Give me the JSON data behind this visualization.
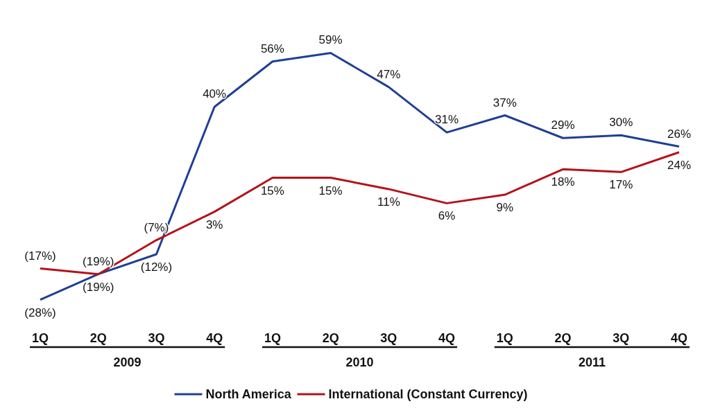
{
  "chart_data": {
    "type": "line",
    "categories": [
      "1Q",
      "2Q",
      "3Q",
      "4Q",
      "1Q",
      "2Q",
      "3Q",
      "4Q",
      "1Q",
      "2Q",
      "3Q",
      "4Q"
    ],
    "series": [
      {
        "name": "North America",
        "color": "#1f3f93",
        "values": [
          -28,
          -19,
          -12,
          40,
          56,
          59,
          47,
          31,
          37,
          29,
          30,
          26
        ],
        "value_labels": [
          "(28%)",
          "(19%)",
          "(12%)",
          "40%",
          "56%",
          "59%",
          "47%",
          "31%",
          "37%",
          "29%",
          "30%",
          "26%"
        ]
      },
      {
        "name": "International (Constant Currency)",
        "color": "#b5121b",
        "values": [
          -17,
          -19,
          -7,
          3,
          15,
          15,
          11,
          6,
          9,
          18,
          17,
          24
        ],
        "value_labels": [
          "(17%)",
          "(19%)",
          "(7%)",
          "3%",
          "15%",
          "15%",
          "11%",
          "6%",
          "9%",
          "18%",
          "17%",
          "24%"
        ]
      }
    ],
    "annotations": [
      "2009",
      "2010",
      "2011"
    ],
    "legend": "bottom",
    "marker": "none",
    "line_style": "solid",
    "grid": false
  }
}
